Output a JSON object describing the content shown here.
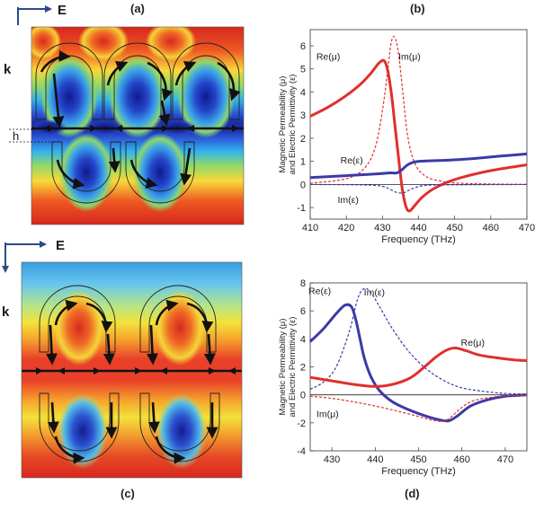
{
  "panels": {
    "a": {
      "label": "(a)",
      "e_label": "E",
      "k_label": "k",
      "h_label": "h"
    },
    "c": {
      "label": "(c)",
      "e_label": "E",
      "k_label": "k"
    }
  },
  "colors": {
    "red_series": "#e0302b",
    "blue_series": "#3a3aa8",
    "axis_arrow": "#2b4a8a"
  },
  "chart_data": [
    {
      "panel": "(b)",
      "type": "line",
      "xlabel": "Frequency (THz)",
      "ylabel_line1": "Magnetic Permeability (μ)",
      "ylabel_line2": "and Electric Permittivity (ε)",
      "xlim": [
        410,
        470
      ],
      "ylim": [
        -1.5,
        6.7
      ],
      "xticks": [
        410,
        420,
        430,
        440,
        450,
        460,
        470
      ],
      "yticks": [
        -1,
        0,
        1,
        2,
        3,
        4,
        5,
        6
      ],
      "series": [
        {
          "name": "Re(μ)",
          "color": "#e0302b",
          "style": "solid",
          "width": 3,
          "x": [
            410,
            415,
            420,
            424,
            427,
            429,
            430.5,
            431.5,
            432.5,
            433.5,
            434.5,
            435.5,
            436.5,
            437.5,
            439,
            441,
            444,
            448,
            453,
            460,
            470
          ],
          "y": [
            2.95,
            3.35,
            3.85,
            4.35,
            4.85,
            5.25,
            5.35,
            4.9,
            3.9,
            2.5,
            1.1,
            -0.2,
            -0.95,
            -1.15,
            -0.9,
            -0.55,
            -0.2,
            0.1,
            0.35,
            0.6,
            0.85
          ]
        },
        {
          "name": "Im(μ)",
          "color": "#e0302b",
          "style": "dashed",
          "width": 1.2,
          "x": [
            410,
            420,
            425,
            428,
            430,
            431.5,
            432.5,
            433.5,
            434.5,
            435.5,
            437,
            439,
            442,
            446,
            452,
            470
          ],
          "y": [
            0.05,
            0.25,
            0.7,
            1.6,
            3.2,
            5.0,
            6.2,
            6.35,
            5.6,
            4.2,
            2.1,
            0.9,
            0.35,
            0.15,
            0.05,
            0.0
          ]
        },
        {
          "name": "Re(ε)",
          "color": "#3a3aa8",
          "style": "solid",
          "width": 3,
          "x": [
            410,
            420,
            428,
            432,
            434,
            435.5,
            437,
            439,
            442,
            448,
            455,
            462,
            470
          ],
          "y": [
            0.3,
            0.38,
            0.45,
            0.5,
            0.5,
            0.65,
            0.85,
            0.98,
            1.02,
            1.05,
            1.12,
            1.22,
            1.32
          ]
        },
        {
          "name": "Im(ε)",
          "color": "#3a3aa8",
          "style": "dashed",
          "width": 1.2,
          "x": [
            410,
            425,
            430,
            432,
            434,
            436,
            438,
            441,
            446,
            470
          ],
          "y": [
            0,
            -0.02,
            -0.08,
            -0.2,
            -0.35,
            -0.35,
            -0.2,
            -0.06,
            -0.02,
            0
          ]
        }
      ],
      "annotations": [
        {
          "text": "Re(μ)",
          "x": 415,
          "y": 5.4
        },
        {
          "text": "Im(μ)",
          "x": 437.5,
          "y": 5.4
        },
        {
          "text": "Re(ε)",
          "x": 421.5,
          "y": 0.9
        },
        {
          "text": "Im(ε)",
          "x": 420.5,
          "y": -0.8
        }
      ]
    },
    {
      "panel": "(d)",
      "type": "line",
      "xlabel": "Frequency (THz)",
      "ylabel_line1": "Magnetic Permeability (μ)",
      "ylabel_line2": "and Electric Permittivity (ε)",
      "xlim": [
        425,
        475
      ],
      "ylim": [
        -4,
        8
      ],
      "xticks": [
        430,
        440,
        450,
        460,
        470
      ],
      "yticks": [
        -4,
        -2,
        0,
        2,
        4,
        6,
        8
      ],
      "series": [
        {
          "name": "Re(ε)",
          "color": "#3a3aa8",
          "style": "solid",
          "width": 3,
          "x": [
            425,
            428,
            431,
            433,
            434.5,
            435.5,
            436.5,
            437.5,
            439,
            441,
            444,
            448,
            452,
            455,
            457,
            459,
            462,
            466,
            470,
            475
          ],
          "y": [
            3.8,
            4.7,
            5.8,
            6.4,
            6.3,
            5.4,
            4.0,
            2.6,
            1.3,
            0.3,
            -0.5,
            -1.1,
            -1.55,
            -1.8,
            -1.85,
            -1.5,
            -0.8,
            -0.35,
            -0.1,
            0.0
          ]
        },
        {
          "name": "Im(ε)",
          "color": "#3a3aa8",
          "style": "dashed",
          "width": 1.2,
          "x": [
            425,
            428,
            431,
            434,
            436,
            437.5,
            439,
            441,
            444,
            448,
            452,
            456,
            460,
            465,
            470,
            475
          ],
          "y": [
            0.4,
            0.9,
            2.0,
            4.5,
            6.9,
            7.6,
            7.3,
            6.3,
            4.7,
            3.0,
            1.8,
            1.0,
            0.5,
            0.25,
            0.1,
            0.05
          ]
        },
        {
          "name": "Re(μ)",
          "color": "#e0302b",
          "style": "solid",
          "width": 3,
          "x": [
            425,
            430,
            435,
            440,
            444,
            448,
            451,
            454,
            456.5,
            458.5,
            461,
            464,
            468,
            472,
            475
          ],
          "y": [
            1.25,
            1.0,
            0.75,
            0.6,
            0.75,
            1.2,
            1.9,
            2.7,
            3.2,
            3.35,
            3.15,
            2.85,
            2.65,
            2.5,
            2.45
          ]
        },
        {
          "name": "Im(μ)",
          "color": "#e0302b",
          "style": "dashed",
          "width": 1.2,
          "x": [
            425,
            430,
            435,
            440,
            445,
            450,
            453,
            455.5,
            457,
            458.5,
            460,
            462,
            465,
            470,
            475
          ],
          "y": [
            -0.1,
            -0.25,
            -0.5,
            -0.8,
            -1.15,
            -1.55,
            -1.8,
            -1.9,
            -1.7,
            -1.3,
            -0.9,
            -0.5,
            -0.25,
            -0.08,
            -0.03
          ]
        }
      ],
      "annotations": [
        {
          "text": "Re(ε)",
          "x": 427.2,
          "y": 7.2
        },
        {
          "text": "Im(ε)",
          "x": 439.8,
          "y": 7.1
        },
        {
          "text": "Re(μ)",
          "x": 462.5,
          "y": 3.5
        },
        {
          "text": "Im(μ)",
          "x": 429,
          "y": -1.6
        }
      ]
    }
  ]
}
